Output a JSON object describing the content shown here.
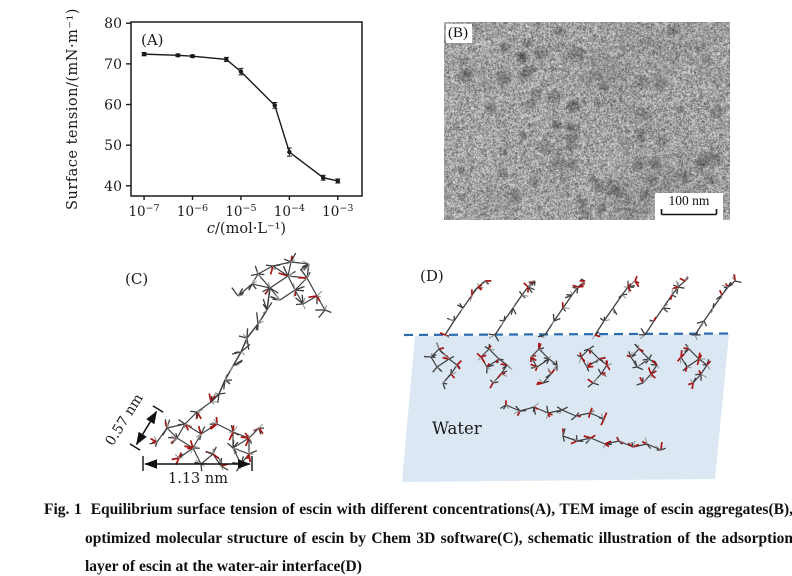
{
  "caption": {
    "fig_label": "Fig. 1",
    "text": "Equilibrium surface tension of escin with different concentrations(A), TEM image of escin aggregates(B), optimized molecular structure of escin by Chem 3D software(C), schematic illustration of the adsorption layer of escin at the water-air interface(D)"
  },
  "panel_a": {
    "label": "(A)"
  },
  "panel_b": {
    "label": "(B)",
    "scale_bar": "100 nm"
  },
  "panel_c": {
    "label": "(C)",
    "dim_height": "0.57 nm",
    "dim_width": "1.13 nm",
    "colors": {
      "oxygen": "#a81414",
      "carbon": "#3d3d3d",
      "hydrogen": "#8f8f8f"
    }
  },
  "panel_d": {
    "label": "(D)",
    "water_label": "Water",
    "colors": {
      "water_fill": "#dbe7f3",
      "interface_dash": "#2a6cb0"
    }
  },
  "chart_data": {
    "type": "line",
    "title": "",
    "xlabel": "c/(mol·L⁻¹)",
    "ylabel": "Surface tension/(mN·m⁻¹)",
    "x": [
      1e-07,
      5e-07,
      1e-06,
      5e-06,
      1e-05,
      5e-05,
      0.0001,
      0.0005,
      0.001
    ],
    "y": [
      72.4,
      72.1,
      71.9,
      71.1,
      68.1,
      59.8,
      48.3,
      42.0,
      41.2
    ],
    "y_err": [
      0.4,
      0.3,
      0.3,
      0.5,
      0.8,
      0.7,
      1.0,
      0.6,
      0.5
    ],
    "xscale": "log",
    "xlim_exp": [
      -7.27,
      -2.5
    ],
    "ylim": [
      37.5,
      80.3
    ],
    "yticks": [
      40,
      50,
      60,
      70,
      80
    ],
    "xtick_exponents": [
      -7,
      -6,
      -5,
      -4,
      -3
    ],
    "grid": false,
    "legend": "none",
    "axis_color": "#1a1a1a"
  }
}
